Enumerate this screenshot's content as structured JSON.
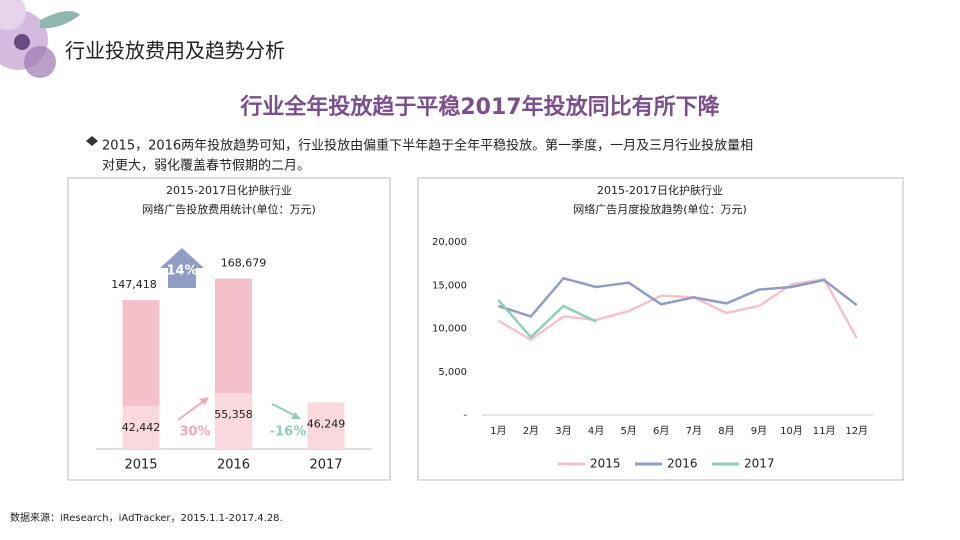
{
  "header": {
    "title": "行业投放费用及趋势分析"
  },
  "headline": "行业全年投放趋于平稳2017年投放同比有所下降",
  "bullet": [
    "2015，2016两年投放趋势可知，行业投放由偏重下半年趋于全年平稳投放。第一季度，一月及三月行业投放量相",
    "对更大，弱化覆盖春节假期的二月。"
  ],
  "source": "数据来源：iResearch，iAdTracker，2015.1.1-2017.4.28.",
  "chart_data": [
    {
      "type": "bar",
      "title": "2015-2017日化护肤行业",
      "subtitle": "网络广告投放费用统计(单位：万元)",
      "categories": [
        "2015",
        "2016",
        "2017"
      ],
      "series": [
        {
          "color": "#f4c0c9",
          "values": [
            147418,
            168679,
            null
          ],
          "value_labels": [
            "147,418",
            "168,679",
            null
          ]
        },
        {
          "color": "#fad9de",
          "values": [
            42442,
            55358,
            46249
          ],
          "value_labels": [
            "42,442",
            "55,358",
            "46,249"
          ]
        }
      ],
      "ylim": [
        0,
        200000
      ],
      "annotations": [
        "14%",
        "30%",
        "-16%"
      ]
    },
    {
      "type": "line",
      "title": "2015-2017日化护肤行业",
      "subtitle": "网络广告月度投放趋势(单位：万元)",
      "categories": [
        "1月",
        "2月",
        "3月",
        "4月",
        "5月",
        "6月",
        "7月",
        "8月",
        "9月",
        "10月",
        "11月",
        "12月"
      ],
      "series": [
        {
          "name": "2015",
          "color": "#f4c2c8",
          "values": [
            10900,
            8700,
            11400,
            11000,
            12000,
            13800,
            13600,
            11800,
            12600,
            15100,
            15700,
            8900
          ]
        },
        {
          "name": "2016",
          "color": "#8f9cc4",
          "values": [
            12600,
            11400,
            15800,
            14800,
            15300,
            12800,
            13600,
            12900,
            14500,
            14800,
            15600,
            12700
          ]
        },
        {
          "name": "2017",
          "color": "#8fcdb8",
          "values": [
            13300,
            9000,
            12600,
            10800,
            null,
            null,
            null,
            null,
            null,
            null,
            null,
            null
          ]
        }
      ],
      "ylim": [
        0,
        20000
      ],
      "yticks": [
        {
          "value": 0,
          "label": "-"
        },
        {
          "value": 5000,
          "label": "5,000"
        },
        {
          "value": 10000,
          "label": "10,000"
        },
        {
          "value": 15000,
          "label": "15,000"
        },
        {
          "value": 20000,
          "label": "20,000"
        }
      ],
      "grid": false,
      "legend": "bottom"
    }
  ]
}
